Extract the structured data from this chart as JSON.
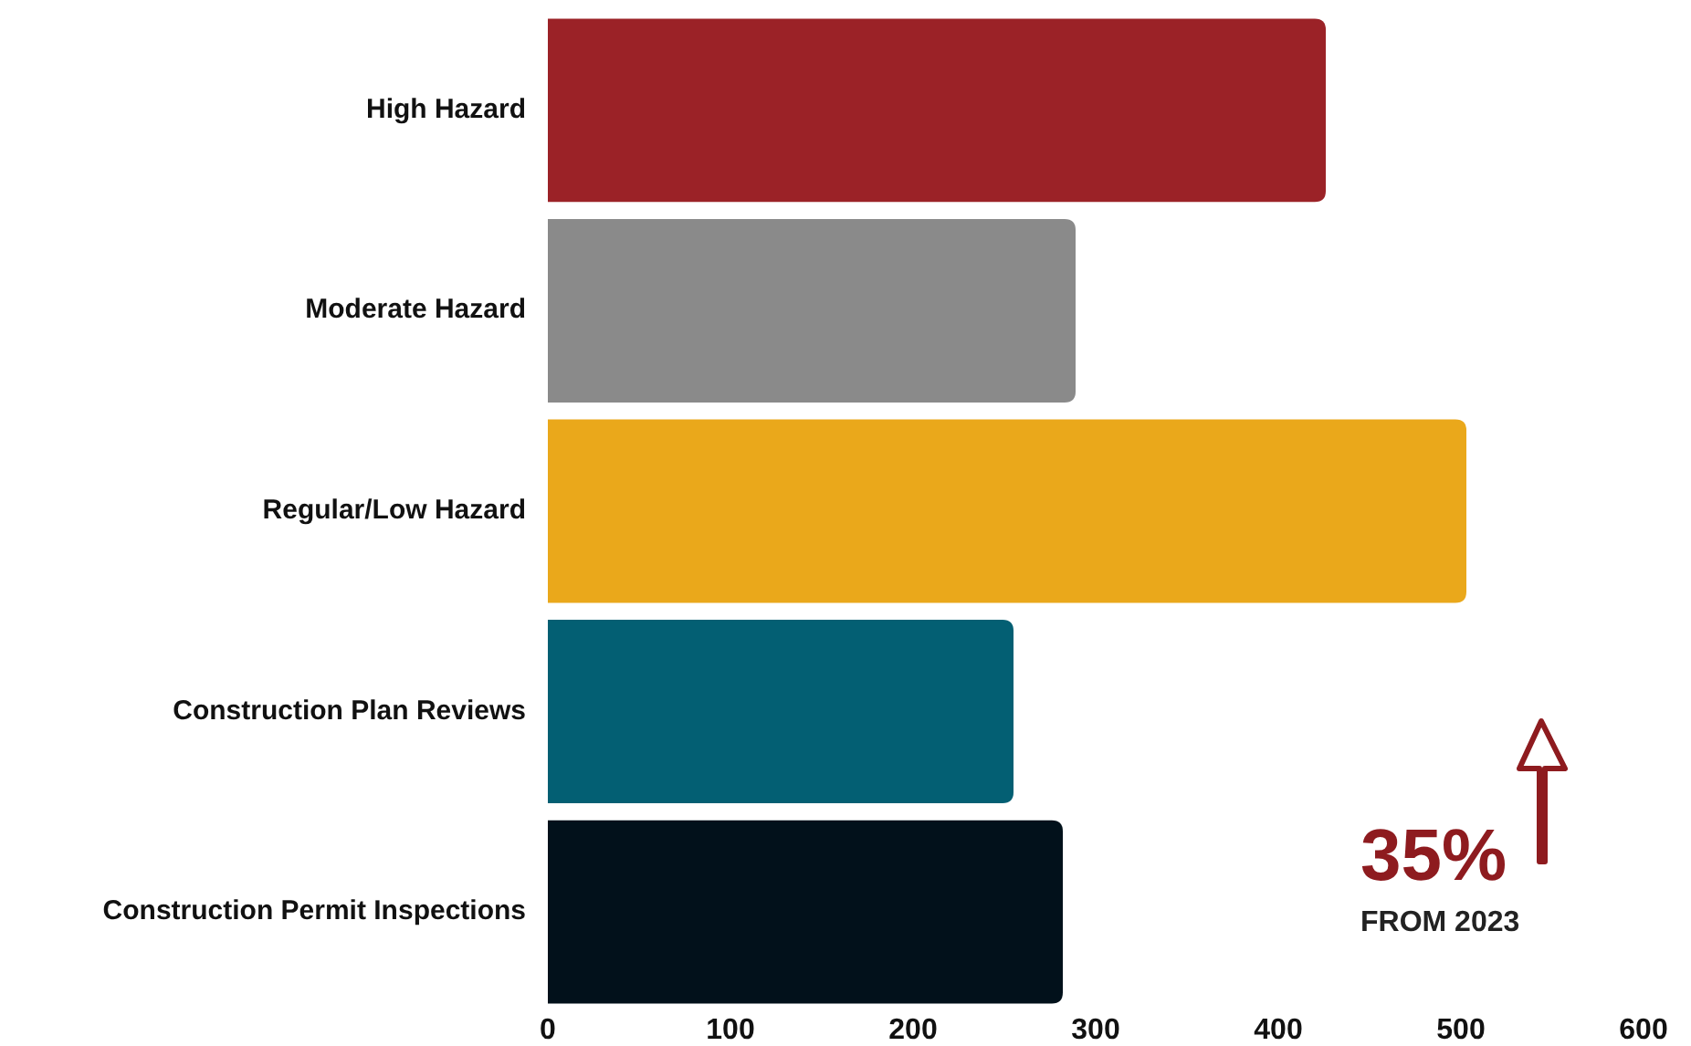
{
  "chart_data": {
    "type": "bar",
    "orientation": "horizontal",
    "categories": [
      "High Hazard",
      "Moderate Hazard",
      "Regular/Low Hazard",
      "Construction Plan Reviews",
      "Construction Permit Inspections"
    ],
    "values": [
      426,
      289,
      503,
      255,
      282
    ],
    "colors": [
      "#9b2227",
      "#8a8a8a",
      "#eaa81b",
      "#035f73",
      "#02111b"
    ],
    "xlim": [
      0,
      600
    ],
    "xticks": [
      0,
      100,
      200,
      300,
      400,
      500,
      600
    ],
    "grid": false,
    "annotations": [
      "35%",
      "FROM 2023"
    ]
  }
}
